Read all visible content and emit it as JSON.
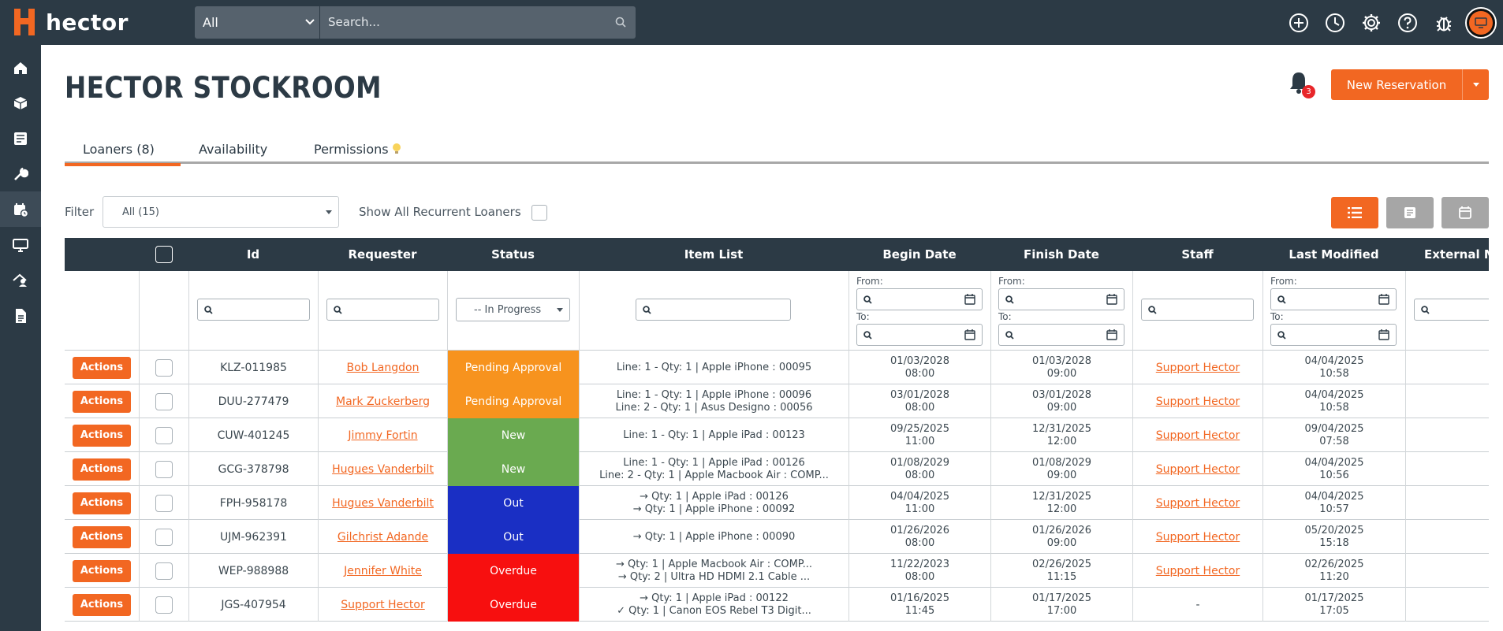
{
  "app": {
    "name": "hector"
  },
  "search": {
    "scope": "All",
    "placeholder": "Search..."
  },
  "user": {
    "avatar_icon": "avatar-icon"
  },
  "page": {
    "title": "HECTOR STOCKROOM",
    "notification_count": "3"
  },
  "new_reservation": {
    "label": "New Reservation"
  },
  "tabs": [
    {
      "label": "Loaners (8)",
      "active": true
    },
    {
      "label": "Availability",
      "active": false
    },
    {
      "label": "Permissions",
      "active": false
    }
  ],
  "filter": {
    "label": "Filter",
    "value": "All (15)",
    "recurrent_label": "Show All Recurrent Loaners"
  },
  "table": {
    "columns": [
      "",
      "",
      "Id",
      "Requester",
      "Status",
      "Item List",
      "Begin Date",
      "Finish Date",
      "Staff",
      "Last Modified",
      "External M"
    ],
    "status_filter": "-- In Progress",
    "from_label": "From:",
    "to_label": "To:",
    "action_label": "Actions",
    "rows": [
      {
        "id": "KLZ-011985",
        "requester": "Bob Langdon",
        "status": "Pending Approval",
        "status_color": "#f7931e",
        "items": [
          "Line: 1 - Qty: 1 | Apple iPhone : 00095"
        ],
        "begin": [
          "01/03/2028",
          "08:00"
        ],
        "finish": [
          "01/03/2028",
          "09:00"
        ],
        "staff": "Support Hector",
        "modified": [
          "04/04/2025",
          "10:58"
        ]
      },
      {
        "id": "DUU-277479",
        "requester": "Mark Zuckerberg",
        "status": "Pending Approval",
        "status_color": "#f7931e",
        "items": [
          "Line: 1 - Qty: 1 | Apple iPhone : 00096",
          "Line: 2 - Qty: 1 | Asus Designo : 00056"
        ],
        "begin": [
          "03/01/2028",
          "08:00"
        ],
        "finish": [
          "03/01/2028",
          "09:00"
        ],
        "staff": "Support Hector",
        "modified": [
          "04/04/2025",
          "10:58"
        ]
      },
      {
        "id": "CUW-401245",
        "requester": "Jimmy Fortin",
        "status": "New",
        "status_color": "#6aaa50",
        "items": [
          "Line: 1 - Qty: 1 | Apple iPad : 00123"
        ],
        "begin": [
          "09/25/2025",
          "11:00"
        ],
        "finish": [
          "12/31/2025",
          "12:00"
        ],
        "staff": "Support Hector",
        "modified": [
          "09/04/2025",
          "07:58"
        ]
      },
      {
        "id": "GCG-378798",
        "requester": "Hugues Vanderbilt",
        "status": "New",
        "status_color": "#6aaa50",
        "items": [
          "Line: 1 - Qty: 1 | Apple iPad : 00126",
          "Line: 2 - Qty: 1 | Apple Macbook Air : COMP..."
        ],
        "begin": [
          "01/08/2029",
          "08:00"
        ],
        "finish": [
          "01/08/2029",
          "09:00"
        ],
        "staff": "Support Hector",
        "modified": [
          "04/04/2025",
          "10:56"
        ]
      },
      {
        "id": "FPH-958178",
        "requester": "Hugues Vanderbilt",
        "status": "Out",
        "status_color": "#1a2fc4",
        "items": [
          "→ Qty: 1 | Apple iPad : 00126",
          "→ Qty: 1 | Apple iPhone : 00092"
        ],
        "begin": [
          "04/04/2025",
          "11:00"
        ],
        "finish": [
          "12/31/2025",
          "12:00"
        ],
        "staff": "Support Hector",
        "modified": [
          "04/04/2025",
          "10:57"
        ]
      },
      {
        "id": "UJM-962391",
        "requester": "Gilchrist Adande",
        "status": "Out",
        "status_color": "#1a2fc4",
        "items": [
          "→ Qty: 1 | Apple iPhone : 00090"
        ],
        "begin": [
          "01/26/2026",
          "08:00"
        ],
        "finish": [
          "01/26/2026",
          "09:00"
        ],
        "staff": "Support Hector",
        "modified": [
          "05/20/2025",
          "15:18"
        ]
      },
      {
        "id": "WEP-988988",
        "requester": "Jennifer White",
        "status": "Overdue",
        "status_color": "#f70f0f",
        "items": [
          "→ Qty: 1 | Apple Macbook Air : COMP...",
          "→ Qty: 2 | Ultra HD HDMI 2.1 Cable ..."
        ],
        "begin": [
          "11/22/2023",
          "08:00"
        ],
        "finish": [
          "02/26/2025",
          "11:15"
        ],
        "staff": "Support Hector",
        "modified": [
          "02/26/2025",
          "11:20"
        ]
      },
      {
        "id": "JGS-407954",
        "requester": "Support Hector",
        "status": "Overdue",
        "status_color": "#f70f0f",
        "items": [
          "→ Qty: 1 | Apple iPad : 00122",
          "✓ Qty: 1 | Canon EOS Rebel T3 Digit..."
        ],
        "begin": [
          "01/16/2025",
          "11:45"
        ],
        "finish": [
          "01/17/2025",
          "17:00"
        ],
        "staff": "-",
        "modified": [
          "01/17/2025",
          "17:05"
        ]
      }
    ]
  },
  "colors": {
    "accent": "#f26722",
    "navbar": "#2c3a45",
    "pending": "#f7931e",
    "new": "#6aaa50",
    "out": "#1a2fc4",
    "overdue": "#f70f0f"
  }
}
